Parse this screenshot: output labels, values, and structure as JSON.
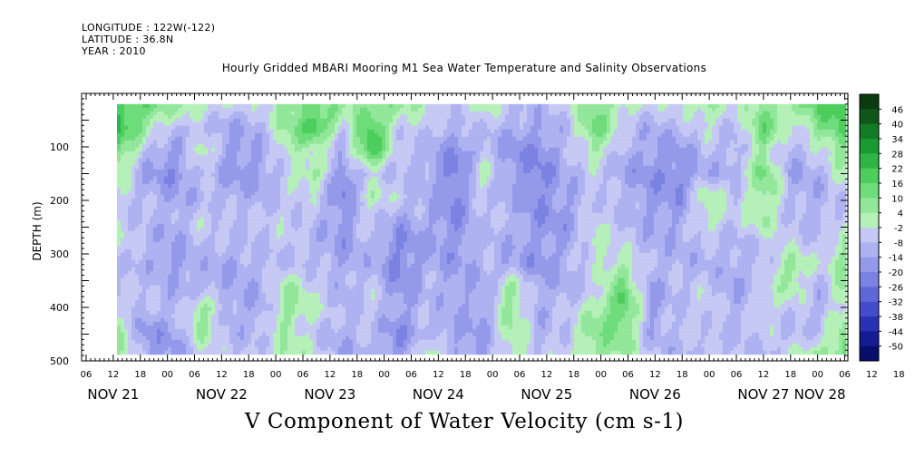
{
  "header": {
    "longitude": "LONGITUDE : 122W(-122)",
    "latitude": "LATITUDE : 36.8N",
    "year": "YEAR : 2010"
  },
  "chart_data": {
    "type": "heatmap",
    "title": "Hourly Gridded MBARI Mooring M1 Sea Water Temperature and Salinity Observations",
    "xlabel": "V Component of Water Velocity (cm s-1)",
    "ylabel": "DEPTH (m)",
    "ylim": [
      500,
      0
    ],
    "yticks": [
      "100",
      "200",
      "300",
      "400",
      "500"
    ],
    "x_hour_ticks": [
      "06",
      "12",
      "18",
      "00",
      "06",
      "12",
      "18",
      "00",
      "06",
      "12",
      "18",
      "00",
      "06",
      "12",
      "18",
      "00",
      "06",
      "12",
      "18",
      "00",
      "06",
      "12",
      "18",
      "00",
      "06",
      "12",
      "18",
      "00",
      "06",
      "12",
      "18",
      "00"
    ],
    "date_labels": [
      "NOV 21",
      "NOV 22",
      "NOV 23",
      "NOV 24",
      "NOV 25",
      "NOV 26",
      "NOV 27",
      "NOV 28"
    ],
    "colorbar_labels": [
      "46",
      "40",
      "34",
      "28",
      "22",
      "16",
      "10",
      "4",
      "-2",
      "-8",
      "-14",
      "-20",
      "-26",
      "-32",
      "-38",
      "-44",
      "-50"
    ],
    "colorbar_colors": [
      "#0b3a12",
      "#10561b",
      "#137a25",
      "#1a9a32",
      "#2db645",
      "#4ccd5c",
      "#6edc7b",
      "#92e79a",
      "#b4f0b8",
      "#c6c9f4",
      "#aeb2f0",
      "#9499ea",
      "#7b82e2",
      "#5f67d8",
      "#444ccb",
      "#2b31b5",
      "#161b95",
      "#080d6a"
    ],
    "columns": [
      {
        "time": "NOV 21 12",
        "v": [
          18,
          22,
          14,
          2,
          -4,
          -6,
          -2,
          -6,
          -8,
          -4,
          2,
          8
        ]
      },
      {
        "time": "NOV 21 18",
        "v": [
          14,
          4,
          -10,
          -14,
          -10,
          -8,
          -10,
          -12,
          -6,
          -10,
          -18,
          -14
        ]
      },
      {
        "time": "NOV 22 00",
        "v": [
          4,
          -8,
          -16,
          -20,
          -14,
          -12,
          -14,
          -16,
          -12,
          -10,
          -14,
          -16
        ]
      },
      {
        "time": "NOV 22 06",
        "v": [
          2,
          -10,
          6,
          -8,
          -10,
          -4,
          -8,
          -10,
          -12,
          8,
          4,
          -4
        ]
      },
      {
        "time": "NOV 22 12",
        "v": [
          -4,
          -14,
          -18,
          -16,
          -12,
          -6,
          -10,
          -14,
          -12,
          -12,
          -10,
          -8
        ]
      },
      {
        "time": "NOV 22 18",
        "v": [
          -6,
          -10,
          -14,
          -16,
          -12,
          -8,
          -8,
          -10,
          -12,
          -14,
          -10,
          -6
        ]
      },
      {
        "time": "NOV 23 00",
        "v": [
          8,
          4,
          2,
          -6,
          -6,
          -4,
          -6,
          -8,
          4,
          8,
          2,
          6
        ]
      },
      {
        "time": "NOV 23 06",
        "v": [
          12,
          24,
          -2,
          8,
          -6,
          -8,
          -10,
          -8,
          -4,
          -2,
          -6,
          -4
        ]
      },
      {
        "time": "NOV 23 12",
        "v": [
          4,
          -6,
          -12,
          -20,
          -22,
          -18,
          -16,
          -14,
          -12,
          -10,
          -12,
          -14
        ]
      },
      {
        "time": "NOV 23 18",
        "v": [
          10,
          18,
          24,
          -6,
          2,
          -4,
          -8,
          -10,
          -6,
          -4,
          -8,
          -10
        ]
      },
      {
        "time": "NOV 24 00",
        "v": [
          6,
          -4,
          -10,
          -8,
          -6,
          -14,
          -20,
          -22,
          -18,
          -16,
          -20,
          -18
        ]
      },
      {
        "time": "NOV 24 06",
        "v": [
          -2,
          -6,
          -10,
          -12,
          -10,
          -12,
          -14,
          -12,
          -10,
          -8,
          -10,
          6
        ]
      },
      {
        "time": "NOV 24 12",
        "v": [
          -6,
          -12,
          -20,
          -24,
          -22,
          -20,
          -18,
          -16,
          -14,
          -12,
          -14,
          -12
        ]
      },
      {
        "time": "NOV 24 18",
        "v": [
          2,
          -6,
          -10,
          4,
          -8,
          -6,
          -8,
          -10,
          -12,
          -14,
          -16,
          -14
        ]
      },
      {
        "time": "NOV 25 00",
        "v": [
          -8,
          -12,
          -18,
          -16,
          -12,
          -10,
          -12,
          -14,
          6,
          8,
          4,
          2
        ]
      },
      {
        "time": "NOV 25 06",
        "v": [
          -10,
          -14,
          -20,
          -22,
          -20,
          -18,
          -16,
          -18,
          -14,
          -12,
          -10,
          -8
        ]
      },
      {
        "time": "NOV 25 12",
        "v": [
          -4,
          -8,
          -10,
          -12,
          -14,
          -16,
          -14,
          -12,
          -10,
          -8,
          -6,
          -4
        ]
      },
      {
        "time": "NOV 25 18",
        "v": [
          8,
          14,
          4,
          -6,
          -4,
          -6,
          2,
          -4,
          -6,
          4,
          8,
          6
        ]
      },
      {
        "time": "NOV 26 00",
        "v": [
          2,
          -6,
          -10,
          -14,
          -10,
          -8,
          -6,
          4,
          12,
          18,
          10,
          4
        ]
      },
      {
        "time": "NOV 26 06",
        "v": [
          -6,
          -12,
          -16,
          -18,
          -16,
          -14,
          -12,
          -10,
          -14,
          -16,
          -12,
          -8
        ]
      },
      {
        "time": "NOV 26 12",
        "v": [
          -2,
          -10,
          -16,
          -20,
          -18,
          -14,
          -12,
          -10,
          -8,
          -6,
          -8,
          -10
        ]
      },
      {
        "time": "NOV 26 18",
        "v": [
          6,
          -4,
          -8,
          -12,
          4,
          2,
          -8,
          -10,
          -6,
          -4,
          -6,
          -8
        ]
      },
      {
        "time": "NOV 27 00",
        "v": [
          -4,
          -8,
          -12,
          -10,
          -8,
          -6,
          -10,
          -12,
          -14,
          -12,
          -10,
          -8
        ]
      },
      {
        "time": "NOV 27 06",
        "v": [
          8,
          14,
          6,
          12,
          8,
          4,
          -6,
          -8,
          -4,
          -2,
          -6,
          -10
        ]
      },
      {
        "time": "NOV 27 12",
        "v": [
          4,
          -6,
          -12,
          -14,
          -10,
          -8,
          -6,
          8,
          4,
          -6,
          -8,
          -4
        ]
      },
      {
        "time": "NOV 27 18",
        "v": [
          16,
          10,
          -4,
          -10,
          -12,
          -10,
          -8,
          -6,
          -10,
          -12,
          -8,
          6
        ]
      },
      {
        "time": "NOV 28 00",
        "v": [
          22,
          18,
          10,
          2,
          -4,
          -6,
          6,
          10,
          8,
          4,
          10,
          12
        ]
      }
    ]
  }
}
